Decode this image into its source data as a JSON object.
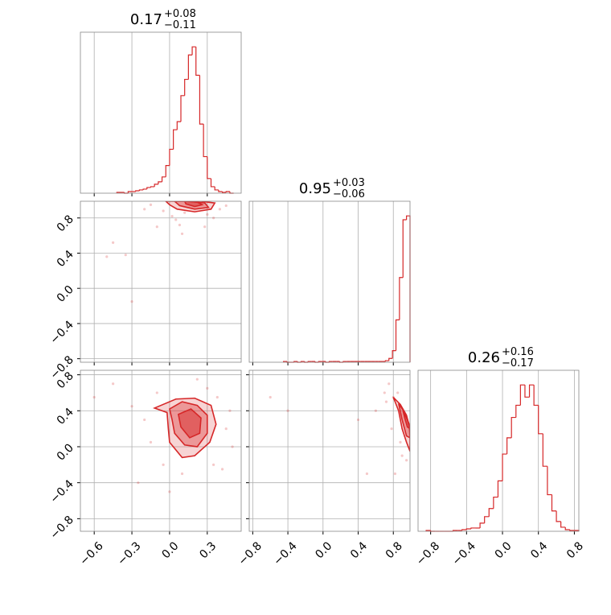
{
  "chart_data": {
    "type": "corner",
    "color": "#d62728",
    "grid": true,
    "parameters": [
      {
        "title": {
          "value": "0.17",
          "plus": "+0.08",
          "minus": "−0.11"
        },
        "lim": [
          -0.71,
          0.57
        ],
        "ticks": [
          {
            "value": -0.6,
            "label": "−0.6"
          },
          {
            "value": -0.3,
            "label": "−0.3"
          },
          {
            "value": 0,
            "label": "0.0"
          },
          0.3
        ],
        "bins": [
          -0.42,
          -0.39,
          -0.36,
          -0.33,
          -0.3,
          -0.27,
          -0.24,
          -0.21,
          -0.18,
          -0.15,
          -0.12,
          -0.09,
          -0.06,
          -0.03,
          0.0,
          0.03,
          0.06,
          0.09,
          0.12,
          0.15,
          0.18,
          0.21,
          0.24,
          0.27,
          0.3,
          0.33,
          0.36,
          0.39,
          0.42,
          0.45,
          0.48,
          0.51
        ],
        "counts": [
          1,
          1,
          0,
          2,
          2,
          3,
          4,
          5,
          7,
          8,
          11,
          14,
          20,
          34,
          54,
          78,
          88,
          120,
          140,
          170,
          180,
          145,
          85,
          45,
          18,
          8,
          4,
          2,
          1,
          2,
          0
        ]
      },
      {
        "title": {
          "value": "0.95",
          "plus": "+0.03",
          "minus": "−0.06"
        },
        "lim": [
          -0.84,
          0.99
        ],
        "ticks": [
          {
            "value": -0.8,
            "label": "−0.8"
          },
          {
            "value": -0.4,
            "label": "−0.4"
          },
          {
            "value": 0,
            "label": "0.0"
          },
          0.4,
          0.8
        ],
        "bins": [
          -0.45,
          -0.41,
          -0.37,
          -0.33,
          -0.29,
          -0.25,
          -0.21,
          -0.17,
          -0.13,
          -0.09,
          -0.05,
          -0.01,
          0.03,
          0.07,
          0.11,
          0.15,
          0.19,
          0.23,
          0.27,
          0.31,
          0.35,
          0.39,
          0.43,
          0.47,
          0.51,
          0.55,
          0.59,
          0.63,
          0.67,
          0.71,
          0.75,
          0.79,
          0.83,
          0.87,
          0.91,
          0.95,
          0.99
        ],
        "counts": [
          1,
          0,
          0,
          1,
          0,
          1,
          0,
          1,
          1,
          0,
          1,
          1,
          0,
          1,
          1,
          1,
          0,
          1,
          1,
          1,
          1,
          1,
          1,
          1,
          1,
          1,
          1,
          1,
          1,
          2,
          5,
          15,
          55,
          110,
          185,
          190
        ]
      },
      {
        "title": {
          "value": "0.26",
          "plus": "+0.16",
          "minus": "−0.17"
        },
        "lim": [
          -0.94,
          0.85
        ],
        "ticks": [
          {
            "value": -0.8,
            "label": "−0.8"
          },
          {
            "value": -0.4,
            "label": "−0.4"
          },
          {
            "value": 0,
            "label": "0.0"
          },
          0.4,
          0.8
        ],
        "bins": [
          -0.85,
          -0.8,
          -0.75,
          -0.7,
          -0.65,
          -0.6,
          -0.55,
          -0.5,
          -0.45,
          -0.4,
          -0.35,
          -0.3,
          -0.25,
          -0.2,
          -0.15,
          -0.1,
          -0.05,
          0.0,
          0.05,
          0.1,
          0.15,
          0.2,
          0.25,
          0.3,
          0.35,
          0.4,
          0.45,
          0.5,
          0.55,
          0.6,
          0.65,
          0.7,
          0.75,
          0.8,
          0.85
        ],
        "counts": [
          1,
          0,
          0,
          0,
          0,
          0,
          1,
          1,
          2,
          3,
          4,
          4,
          10,
          18,
          28,
          42,
          62,
          95,
          115,
          140,
          155,
          180,
          165,
          180,
          155,
          120,
          80,
          45,
          25,
          12,
          5,
          2,
          1,
          1
        ]
      }
    ],
    "pairs": [
      {
        "x": 0,
        "y": 1,
        "points": {
          "x": [
            -0.45,
            -0.5,
            -0.35,
            -0.3,
            -0.1,
            -0.05,
            0.02,
            0.05,
            0.08,
            0.12,
            0.3,
            0.35,
            0.4,
            0.45,
            -0.15,
            0.1,
            0.28,
            -0.2
          ],
          "y": [
            0.52,
            0.36,
            0.38,
            -0.15,
            0.7,
            0.88,
            0.82,
            0.78,
            0.72,
            0.86,
            0.84,
            0.8,
            0.9,
            0.94,
            0.95,
            0.62,
            0.7,
            0.9
          ]
        },
        "contours": [
          {
            "x": [
              -0.03,
              0.1,
              0.25,
              0.36,
              0.33,
              0.2,
              0.06,
              0.0
            ],
            "y": [
              0.99,
              0.99,
              0.99,
              0.97,
              0.9,
              0.87,
              0.9,
              0.95
            ]
          },
          {
            "x": [
              0.04,
              0.15,
              0.28,
              0.31,
              0.2,
              0.08
            ],
            "y": [
              0.99,
              0.99,
              0.97,
              0.92,
              0.9,
              0.94
            ]
          },
          {
            "x": [
              0.12,
              0.22,
              0.26,
              0.2,
              0.13
            ],
            "y": [
              0.99,
              0.98,
              0.95,
              0.93,
              0.96
            ]
          }
        ]
      },
      {
        "x": 0,
        "y": 2,
        "points": {
          "x": [
            -0.6,
            -0.45,
            -0.3,
            -0.25,
            -0.15,
            -0.1,
            0.45,
            0.5,
            0.42,
            0.38,
            0.35,
            -0.2,
            0.0,
            0.3,
            0.1,
            -0.05,
            0.22,
            0.48
          ],
          "y": [
            0.55,
            0.7,
            0.45,
            -0.4,
            0.05,
            0.6,
            0.2,
            0.0,
            -0.25,
            0.55,
            -0.2,
            0.3,
            -0.5,
            0.65,
            -0.3,
            -0.2,
            0.75,
            0.4
          ]
        },
        "contours": [
          {
            "x": [
              -0.12,
              0.05,
              0.2,
              0.33,
              0.37,
              0.32,
              0.2,
              0.1,
              0.0,
              -0.01,
              -0.02
            ],
            "y": [
              0.43,
              0.53,
              0.54,
              0.46,
              0.25,
              0.05,
              -0.1,
              -0.12,
              0.05,
              0.2,
              0.38
            ]
          },
          {
            "x": [
              0.0,
              0.1,
              0.22,
              0.3,
              0.3,
              0.22,
              0.12,
              0.04,
              0.02
            ],
            "y": [
              0.42,
              0.5,
              0.46,
              0.35,
              0.15,
              0.0,
              0.02,
              0.15,
              0.3
            ]
          },
          {
            "x": [
              0.07,
              0.17,
              0.25,
              0.24,
              0.16,
              0.09
            ],
            "y": [
              0.36,
              0.42,
              0.32,
              0.15,
              0.1,
              0.22
            ]
          }
        ]
      },
      {
        "x": 1,
        "y": 2,
        "points": {
          "x": [
            -0.6,
            -0.4,
            0.4,
            0.5,
            0.6,
            0.7,
            0.75,
            0.8,
            0.82,
            0.85,
            0.9,
            0.95,
            0.72,
            0.78,
            0.88
          ],
          "y": [
            0.55,
            0.4,
            0.3,
            -0.3,
            0.4,
            0.6,
            0.7,
            0.55,
            -0.3,
            0.6,
            -0.1,
            -0.15,
            0.5,
            0.2,
            0.05
          ]
        },
        "contours": [
          {
            "x": [
              0.8,
              0.88,
              0.95,
              0.99,
              0.99,
              0.95,
              0.9,
              0.86
            ],
            "y": [
              0.55,
              0.47,
              0.35,
              0.2,
              -0.05,
              0.05,
              0.2,
              0.4
            ]
          },
          {
            "x": [
              0.86,
              0.93,
              0.98,
              0.99,
              0.95,
              0.9
            ],
            "y": [
              0.48,
              0.38,
              0.25,
              0.1,
              0.12,
              0.3
            ]
          },
          {
            "x": [
              0.91,
              0.96,
              0.99,
              0.96,
              0.93
            ],
            "y": [
              0.4,
              0.3,
              0.2,
              0.22,
              0.32
            ]
          }
        ]
      }
    ]
  }
}
